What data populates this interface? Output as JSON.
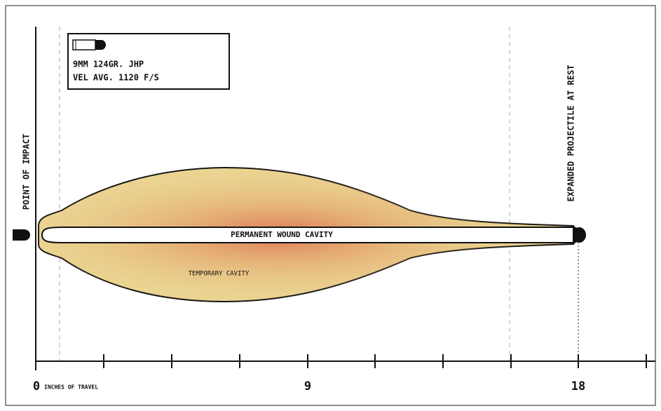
{
  "legend": {
    "projectile": "9MM 124GR. JHP",
    "velocity": "VEL AVG. 1120 F/S"
  },
  "labels": {
    "point_of_impact": "POINT OF IMPACT",
    "expanded_projectile": "EXPANDED PROJECTILE AT REST",
    "permanent_cavity": "PERMANENT WOUND CAVITY",
    "temporary_cavity": "TEMPORARY CAVITY"
  },
  "axis": {
    "ticks": [
      "0",
      "9",
      "18"
    ],
    "unit": "INCHES OF TRAVEL"
  }
}
